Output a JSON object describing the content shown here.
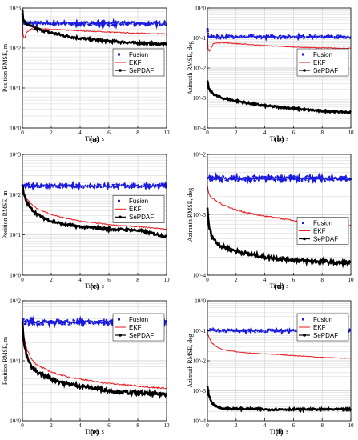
{
  "colors": {
    "fusion": "#1a1adf",
    "ekf": "#e8191d",
    "sepdaf": "#000000",
    "grid": "#c8c8c8",
    "axis": "#000000"
  },
  "chart_data": [
    {
      "type": "line",
      "caption": "(a)",
      "xlabel": "Time, s",
      "ylabel": "Position RMSE, m",
      "xlim": [
        0,
        10
      ],
      "ylim": [
        1,
        1000
      ],
      "ylog": true,
      "xticks": [
        "0",
        "2",
        "4",
        "6",
        "8",
        "10"
      ],
      "yticks": [
        "10^0",
        "10^1",
        "10^2",
        "10^3"
      ],
      "grid": true,
      "legend_position": "middle-right",
      "series": [
        {
          "name": "Fusion",
          "x": [
            0,
            0.05,
            0.3,
            1,
            2,
            4,
            6,
            8,
            10
          ],
          "values": [
            800,
            430,
            420,
            415,
            410,
            410,
            410,
            410,
            410
          ]
        },
        {
          "name": "EKF",
          "x": [
            0,
            0.05,
            0.15,
            0.3,
            0.6,
            1,
            2,
            4,
            6,
            8,
            10
          ],
          "values": [
            700,
            200,
            170,
            250,
            300,
            310,
            290,
            270,
            250,
            235,
            225
          ]
        },
        {
          "name": "SePDAF",
          "x": [
            0,
            0.05,
            0.2,
            0.5,
            1,
            2,
            3,
            4,
            5,
            6,
            7,
            8,
            9,
            10
          ],
          "values": [
            900,
            500,
            420,
            360,
            300,
            240,
            200,
            175,
            160,
            148,
            140,
            133,
            128,
            124
          ]
        }
      ]
    },
    {
      "type": "line",
      "caption": "(b)",
      "xlabel": "Time, s",
      "ylabel": "Azimuth RMSE, deg",
      "xlim": [
        0,
        10
      ],
      "ylim": [
        0.0001,
        1
      ],
      "ylog": true,
      "xticks": [
        "0",
        "2",
        "4",
        "6",
        "8",
        "10"
      ],
      "yticks": [
        "10^-4",
        "10^-3",
        "10^-2",
        "10^-1",
        "10^0"
      ],
      "grid": true,
      "legend_position": "middle-right",
      "series": [
        {
          "name": "Fusion",
          "x": [
            0,
            0.05,
            0.2,
            1,
            2,
            4,
            6,
            8,
            10
          ],
          "values": [
            0.2,
            0.12,
            0.11,
            0.11,
            0.11,
            0.11,
            0.11,
            0.11,
            0.11
          ]
        },
        {
          "name": "EKF",
          "x": [
            0,
            0.05,
            0.15,
            0.4,
            1,
            2,
            4,
            6,
            8,
            10
          ],
          "values": [
            0.15,
            0.04,
            0.035,
            0.065,
            0.07,
            0.065,
            0.056,
            0.05,
            0.047,
            0.045
          ]
        },
        {
          "name": "SePDAF",
          "x": [
            0,
            0.1,
            0.3,
            0.6,
            1,
            2,
            3,
            4,
            5,
            6,
            7,
            8,
            9,
            10
          ],
          "values": [
            0.004,
            0.002,
            0.0015,
            0.0012,
            0.001,
            0.0008,
            0.00065,
            0.00055,
            0.0005,
            0.00045,
            0.0004,
            0.00037,
            0.00035,
            0.00033
          ]
        }
      ]
    },
    {
      "type": "line",
      "caption": "(c)",
      "xlabel": "Time, s",
      "ylabel": "Position RMSE, m",
      "xlim": [
        0,
        10
      ],
      "ylim": [
        1,
        1000
      ],
      "ylog": true,
      "xticks": [
        "0",
        "2",
        "4",
        "6",
        "8",
        "10"
      ],
      "yticks": [
        "10^0",
        "10^1",
        "10^2",
        "10^3"
      ],
      "grid": true,
      "legend_position": "middle-right",
      "series": [
        {
          "name": "Fusion",
          "x": [
            0,
            1,
            2,
            4,
            6,
            8,
            10
          ],
          "values": [
            170,
            165,
            165,
            165,
            165,
            165,
            165
          ]
        },
        {
          "name": "EKF",
          "x": [
            0,
            0.1,
            0.3,
            0.6,
            1,
            1.5,
            2,
            3,
            4,
            6,
            8,
            10
          ],
          "values": [
            170,
            110,
            80,
            60,
            45,
            38,
            32,
            26,
            22,
            18,
            16,
            14
          ]
        },
        {
          "name": "SePDAF",
          "x": [
            0,
            0.1,
            0.3,
            0.6,
            1,
            1.5,
            2,
            3,
            4,
            5,
            6,
            7,
            8,
            9,
            10
          ],
          "values": [
            170,
            100,
            65,
            45,
            33,
            26,
            22,
            18,
            16,
            15,
            14,
            13.5,
            13,
            11,
            9
          ]
        }
      ]
    },
    {
      "type": "line",
      "caption": "(d)",
      "xlabel": "Time, s",
      "ylabel": "Azimuth RMSE, deg",
      "xlim": [
        0,
        10
      ],
      "ylim": [
        0.0001,
        0.01
      ],
      "ylog": true,
      "xticks": [
        "0",
        "2",
        "4",
        "6",
        "8",
        "10"
      ],
      "yticks": [
        "10^-4",
        "10^-3",
        "10^-2"
      ],
      "grid": true,
      "legend_position": "lower-right",
      "series": [
        {
          "name": "Fusion",
          "x": [
            0,
            1,
            2,
            4,
            6,
            8,
            10
          ],
          "values": [
            0.0042,
            0.004,
            0.004,
            0.004,
            0.004,
            0.004,
            0.004
          ]
        },
        {
          "name": "EKF",
          "x": [
            0,
            0.1,
            0.3,
            0.6,
            1,
            2,
            3,
            4,
            5,
            6,
            7,
            8,
            9,
            10
          ],
          "values": [
            0.003,
            0.0022,
            0.0019,
            0.0017,
            0.0015,
            0.0012,
            0.00105,
            0.00095,
            0.00088,
            0.0008,
            0.00075,
            0.0007,
            0.00068,
            0.00066
          ]
        },
        {
          "name": "SePDAF",
          "x": [
            0,
            0.1,
            0.3,
            0.6,
            1,
            2,
            3,
            4,
            5,
            6,
            7,
            8,
            9,
            10
          ],
          "values": [
            0.0013,
            0.00065,
            0.00045,
            0.00035,
            0.0003,
            0.00025,
            0.00022,
            0.0002,
            0.00019,
            0.00018,
            0.00017,
            0.00017,
            0.00016,
            0.00016
          ]
        }
      ]
    },
    {
      "type": "line",
      "caption": "(e)",
      "xlabel": "Time, s",
      "ylabel": "Position RMSE, m",
      "xlim": [
        0,
        10
      ],
      "ylim": [
        1,
        100
      ],
      "ylog": true,
      "xticks": [
        "0",
        "2",
        "4",
        "6",
        "8",
        "10"
      ],
      "yticks": [
        "10^0",
        "10^1",
        "10^2"
      ],
      "grid": true,
      "legend_position": "upper-right",
      "series": [
        {
          "name": "Fusion",
          "x": [
            0,
            1,
            2,
            4,
            6,
            8,
            10
          ],
          "values": [
            45,
            44,
            44,
            44,
            44,
            44,
            44
          ]
        },
        {
          "name": "EKF",
          "x": [
            0,
            0.1,
            0.3,
            0.6,
            1,
            2,
            3,
            4,
            5,
            6,
            7,
            8,
            9,
            10
          ],
          "values": [
            45,
            25,
            16,
            11,
            8.5,
            6.5,
            5.5,
            5,
            4.5,
            4.2,
            4,
            3.8,
            3.6,
            3.5
          ]
        },
        {
          "name": "SePDAF",
          "x": [
            0,
            0.1,
            0.3,
            0.6,
            1,
            2,
            3,
            4,
            5,
            6,
            7,
            8,
            9,
            10
          ],
          "values": [
            45,
            20,
            12,
            8,
            6.5,
            5,
            4.2,
            3.8,
            3.5,
            3.2,
            3,
            2.9,
            2.8,
            2.8
          ]
        }
      ]
    },
    {
      "type": "line",
      "caption": "(f)",
      "xlabel": "Time, s",
      "ylabel": "Azimuth RMSE, deg",
      "xlim": [
        0,
        10
      ],
      "ylim": [
        0.0001,
        1
      ],
      "ylog": true,
      "xticks": [
        "0",
        "2",
        "4",
        "6",
        "8",
        "10"
      ],
      "yticks": [
        "10^-4",
        "10^-3",
        "10^-2",
        "10^-1",
        "10^0"
      ],
      "grid": true,
      "legend_position": "upper-right",
      "series": [
        {
          "name": "Fusion",
          "x": [
            0,
            1,
            2,
            4,
            6,
            8,
            10
          ],
          "values": [
            0.11,
            0.1,
            0.1,
            0.1,
            0.1,
            0.1,
            0.1
          ]
        },
        {
          "name": "EKF",
          "x": [
            0,
            0.1,
            0.3,
            0.6,
            1,
            2,
            3,
            4,
            5,
            6,
            7,
            8,
            9,
            10
          ],
          "values": [
            0.09,
            0.06,
            0.04,
            0.03,
            0.024,
            0.02,
            0.018,
            0.017,
            0.016,
            0.015,
            0.014,
            0.013,
            0.0125,
            0.012
          ]
        },
        {
          "name": "SePDAF",
          "x": [
            0,
            0.1,
            0.3,
            0.6,
            1,
            2,
            3,
            4,
            5,
            6,
            7,
            8,
            9,
            10
          ],
          "values": [
            0.0015,
            0.0007,
            0.0004,
            0.0003,
            0.00026,
            0.00025,
            0.00025,
            0.00024,
            0.00024,
            0.00024,
            0.00024,
            0.00024,
            0.00024,
            0.00024
          ]
        }
      ]
    }
  ]
}
